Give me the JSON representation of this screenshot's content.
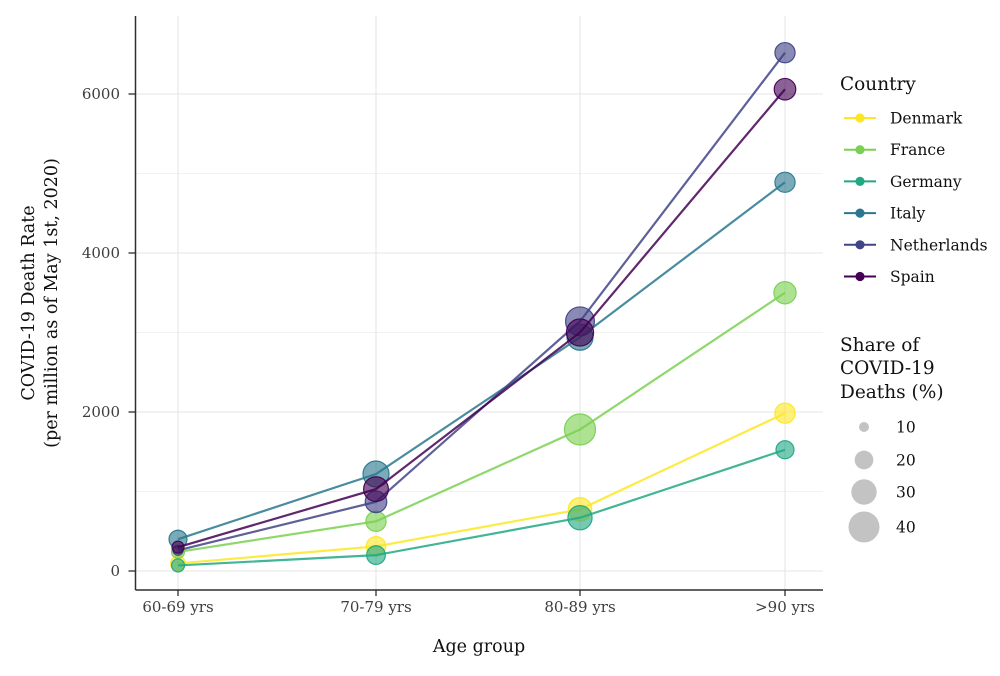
{
  "chart_data": {
    "type": "line-bubble",
    "title": "",
    "xlabel": "Age group",
    "ylabel_line1": "COVID-19 Death Rate",
    "ylabel_line2": "(per million as of May 1st, 2020)",
    "categories": [
      "60-69 yrs",
      "70-79 yrs",
      "80-89 yrs",
      ">90 yrs"
    ],
    "y_ticks": [
      0,
      2000,
      4000,
      6000
    ],
    "y_minor_gridlines": [
      1000,
      3000,
      5000
    ],
    "ylim": [
      0,
      6900
    ],
    "grid_on": true,
    "legend_position": "right",
    "series": [
      {
        "name": "Denmark",
        "color": "#FDE725",
        "values": [
          95,
          310,
          775,
          1985
        ],
        "shares": [
          15,
          21,
          27,
          22
        ]
      },
      {
        "name": "France",
        "color": "#7AD151",
        "values": [
          240,
          625,
          1780,
          3500
        ],
        "shares": [
          13,
          22,
          40,
          25
        ]
      },
      {
        "name": "Germany",
        "color": "#22A884",
        "values": [
          70,
          200,
          670,
          1525
        ],
        "shares": [
          13,
          20,
          28,
          19
        ]
      },
      {
        "name": "Italy",
        "color": "#2A788E",
        "values": [
          400,
          1220,
          2940,
          4890
        ],
        "shares": [
          19,
          31,
          31,
          22
        ]
      },
      {
        "name": "Netherlands",
        "color": "#414487",
        "values": [
          260,
          870,
          3140,
          6520
        ],
        "shares": [
          10,
          24,
          36,
          22
        ]
      },
      {
        "name": "Spain",
        "color": "#440154",
        "values": [
          300,
          1030,
          3000,
          6060
        ],
        "shares": [
          12,
          29,
          33,
          24
        ]
      }
    ],
    "country_legend": {
      "title": "Country",
      "entries": [
        "Denmark",
        "France",
        "Germany",
        "Italy",
        "Netherlands",
        "Spain"
      ]
    },
    "size_legend": {
      "title_lines": [
        "Share of",
        "COVID-19",
        "Deaths (%)"
      ],
      "values": [
        10,
        20,
        30,
        40
      ],
      "key_color": "#bdbdbd"
    },
    "colors": {
      "background": "#ffffff",
      "major_grid": "#e5e5e5",
      "minor_grid": "#f2f2f2",
      "axis_line": "#2e2e2e"
    }
  }
}
